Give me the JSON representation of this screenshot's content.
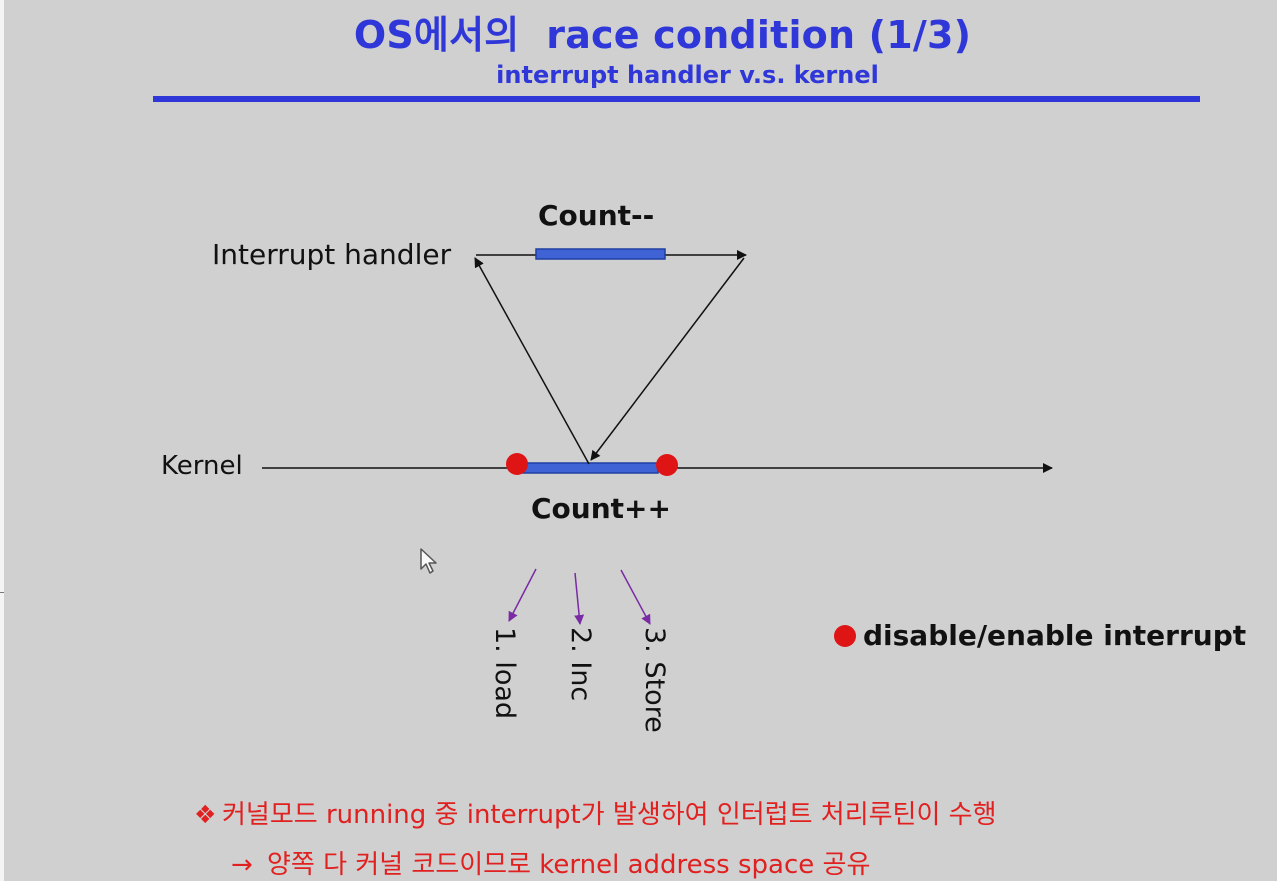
{
  "slide": {
    "title": "OS에서의  race condition (1/3)",
    "subtitle": "interrupt handler v.s. kernel"
  },
  "diagram": {
    "interrupt_handler_label": "Interrupt handler",
    "kernel_label": "Kernel",
    "count_decrement": "Count--",
    "count_increment": "Count++",
    "steps": [
      "1. load",
      "2. Inc",
      "3. Store"
    ],
    "legend_label": "disable/enable interrupt"
  },
  "notes": {
    "bullet_symbol": "❖",
    "line_1": "커널모드 running 중 interrupt가 발생하여 인터럽트 처리루틴이 수행",
    "arrow_symbol": "→",
    "line_2": "양쪽 다 커널 코드이므로 kernel address space 공유"
  },
  "colors": {
    "title": "#2f37d8",
    "segment": "#3f63d4",
    "marker": "#df1414",
    "note_text": "#e12020",
    "step_arrow": "#7a2aa4"
  },
  "icons": {
    "pointer": "mouse-pointer-icon",
    "bullet": "diamond-bullet-icon",
    "arrow": "right-arrow-icon",
    "marker": "red-circle-icon"
  }
}
